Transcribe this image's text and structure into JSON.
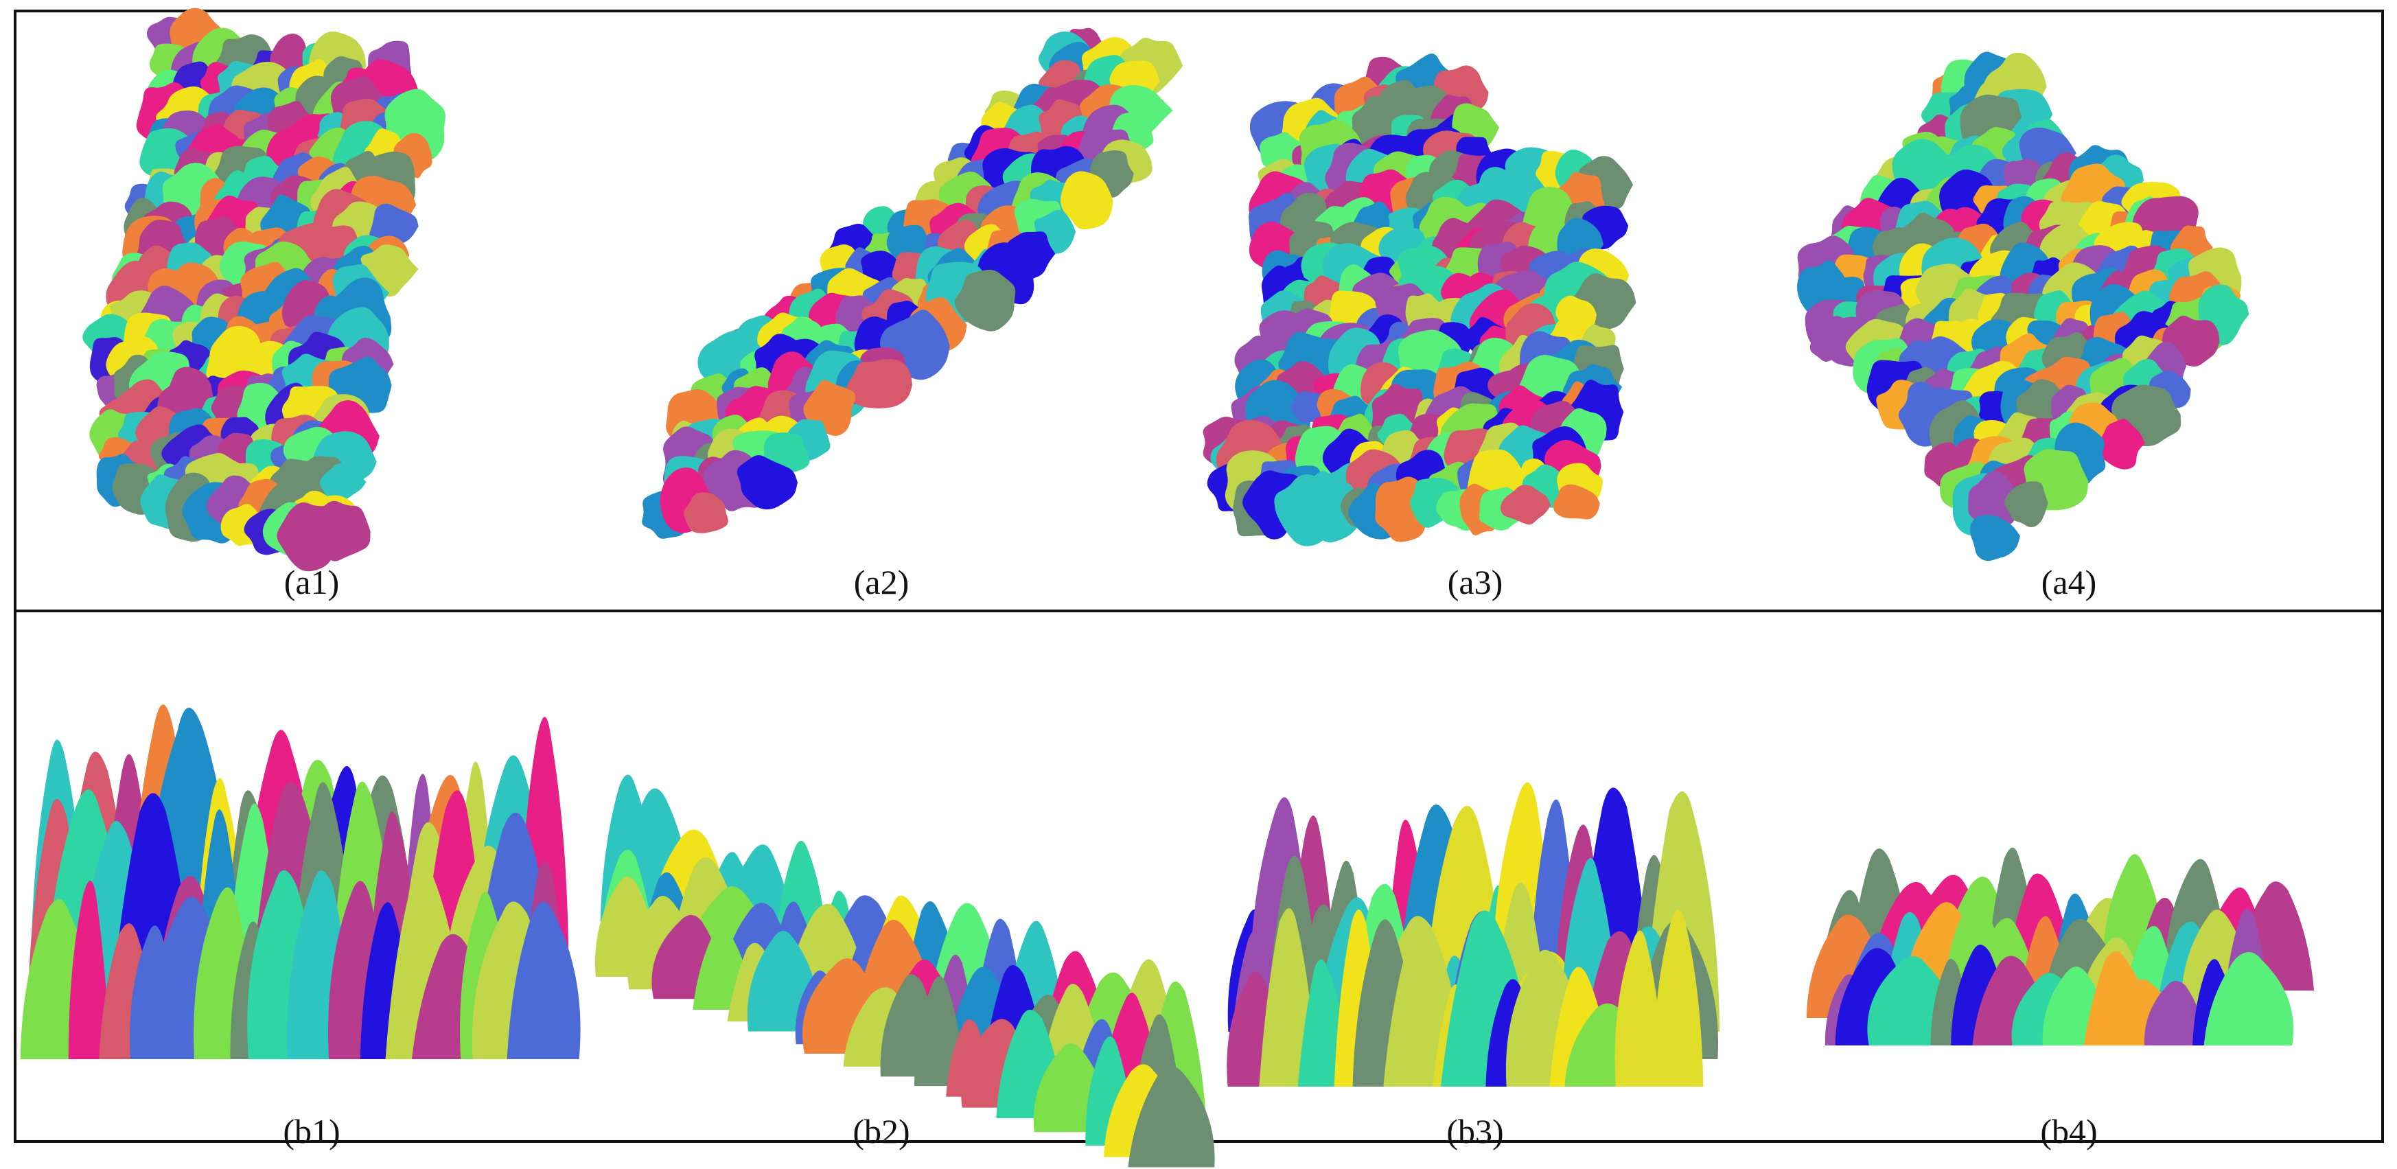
{
  "figure": {
    "panels": [
      {
        "id": "a1",
        "caption": "(a1)",
        "view": "top",
        "palette": [
          "#2fd6a4",
          "#6b8f70",
          "#3b1fd1",
          "#f0e31c",
          "#e81f86",
          "#9a4fb0",
          "#1f8ec8",
          "#7de04a",
          "#f0813a",
          "#b83c8e",
          "#2ec4c0",
          "#c2d64a",
          "#4d6bd6",
          "#58f07a",
          "#d65a6b"
        ]
      },
      {
        "id": "a2",
        "caption": "(a2)",
        "view": "top",
        "palette": [
          "#2fd6a4",
          "#6b8f70",
          "#2212e0",
          "#f0e31c",
          "#e81f86",
          "#9a4fb0",
          "#1f8ec8",
          "#7de04a",
          "#f0813a",
          "#b83c8e",
          "#2ec4c0",
          "#c2d64a",
          "#4d6bd6",
          "#58f07a",
          "#d65a6b"
        ]
      },
      {
        "id": "a3",
        "caption": "(a3)",
        "view": "top",
        "palette": [
          "#2fd6a4",
          "#6b8f70",
          "#2212e0",
          "#f0e31c",
          "#e81f86",
          "#9a4fb0",
          "#1f8ec8",
          "#7de04a",
          "#f0813a",
          "#b83c8e",
          "#2ec4c0",
          "#c2d64a",
          "#4d6bd6",
          "#58f07a",
          "#d65a6b"
        ]
      },
      {
        "id": "a4",
        "caption": "(a4)",
        "view": "top",
        "palette": [
          "#2fd6a4",
          "#6b8f70",
          "#2212e0",
          "#f0e31c",
          "#e81f86",
          "#9a4fb0",
          "#1f8ec8",
          "#7de04a",
          "#f0813a",
          "#b83c8e",
          "#2ec4c0",
          "#c2d64a",
          "#4d6bd6",
          "#58f07a",
          "#f6a62a"
        ]
      },
      {
        "id": "b1",
        "caption": "(b1)",
        "view": "side",
        "palette": [
          "#2fd6a4",
          "#6b8f70",
          "#2212e0",
          "#f0e31c",
          "#e81f86",
          "#9a4fb0",
          "#1f8ec8",
          "#7de04a",
          "#f0813a",
          "#b83c8e",
          "#2ec4c0",
          "#c2d64a",
          "#4d6bd6",
          "#58f07a",
          "#d65a6b"
        ]
      },
      {
        "id": "b2",
        "caption": "(b2)",
        "view": "side",
        "palette": [
          "#2fd6a4",
          "#6b8f70",
          "#2212e0",
          "#f0e31c",
          "#e81f86",
          "#9a4fb0",
          "#1f8ec8",
          "#7de04a",
          "#f0813a",
          "#b83c8e",
          "#2ec4c0",
          "#c2d64a",
          "#4d6bd6",
          "#58f07a",
          "#d65a6b"
        ]
      },
      {
        "id": "b3",
        "caption": "(b3)",
        "view": "side",
        "palette": [
          "#2fd6a4",
          "#6b8f70",
          "#2212e0",
          "#f0e31c",
          "#e81f86",
          "#9a4fb0",
          "#1f8ec8",
          "#7de04a",
          "#f0813a",
          "#b83c8e",
          "#2ec4c0",
          "#c2d64a",
          "#4d6bd6",
          "#58f07a",
          "#e0dd2a"
        ]
      },
      {
        "id": "b4",
        "caption": "(b4)",
        "view": "side",
        "palette": [
          "#2fd6a4",
          "#6b8f70",
          "#2212e0",
          "#f0e31c",
          "#e81f86",
          "#9a4fb0",
          "#1f8ec8",
          "#7de04a",
          "#f0813a",
          "#b83c8e",
          "#2ec4c0",
          "#c2d64a",
          "#4d6bd6",
          "#58f07a",
          "#f6a62a"
        ]
      }
    ]
  }
}
